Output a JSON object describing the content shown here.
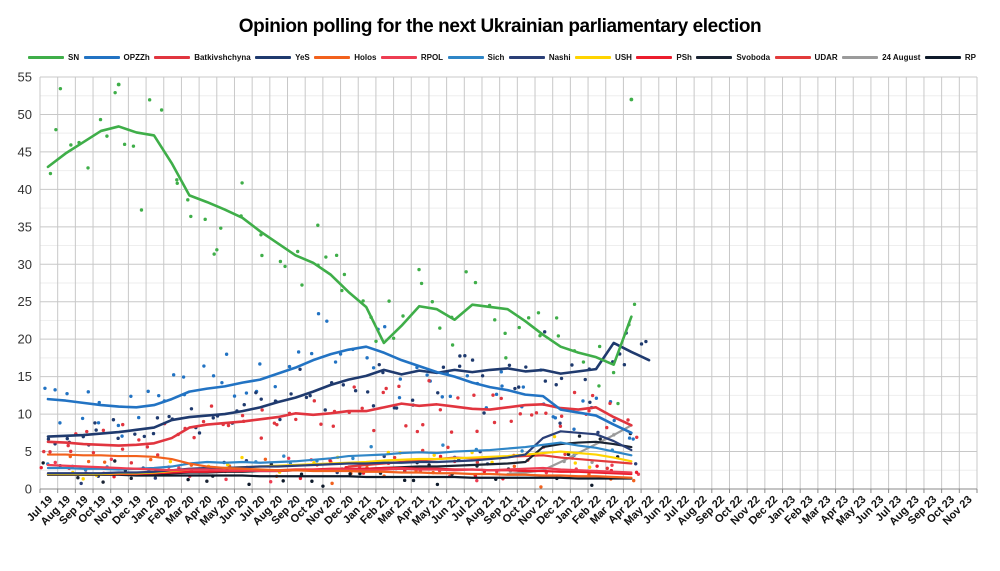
{
  "title": "Opinion polling for the next Ukrainian parliamentary election",
  "chart_data": {
    "type": "line",
    "subtype": "trend lines with poll scatter points",
    "title": "Opinion polling for the next Ukrainian parliamentary election",
    "legend_position": "top",
    "grid": true,
    "y_axis": {
      "min": 0,
      "max": 55,
      "tick_step": 5,
      "minor_step": 2.5,
      "ticks": [
        0,
        5,
        10,
        15,
        20,
        25,
        30,
        35,
        40,
        45,
        50,
        55
      ]
    },
    "x_axis": {
      "label_rotation": -45,
      "categories": [
        "Jul 19",
        "Aug 19",
        "Sep 19",
        "Oct 19",
        "Nov 19",
        "Dec 19",
        "Jan 20",
        "Feb 20",
        "Mar 20",
        "Apr 20",
        "May 20",
        "Jun 20",
        "Jul 20",
        "Aug 20",
        "Sep 20",
        "Oct 20",
        "Nov 20",
        "Dec 20",
        "Jan 21",
        "Feb 21",
        "Mar 21",
        "Apr 21",
        "May 21",
        "Jun 21",
        "Jul 21",
        "Aug 21",
        "Sep 21",
        "Oct 21",
        "Nov 21",
        "Dec 21",
        "Jan 22",
        "Feb 22",
        "Mar 22",
        "Apr 22",
        "May 22",
        "Jun 22",
        "Jul 22",
        "Aug 22",
        "Sep 22",
        "Oct 22",
        "Nov 22",
        "Dec 22",
        "Jan 23",
        "Feb 23",
        "Mar 23",
        "Apr 23",
        "May 23",
        "Jun 23",
        "Jul 23",
        "Aug 23",
        "Sep 23",
        "Oct 23",
        "Nov 23"
      ]
    },
    "data_months": [
      "Jul 19",
      "Aug 19",
      "Sep 19",
      "Oct 19",
      "Nov 19",
      "Dec 19",
      "Jan 20",
      "Feb 20",
      "Mar 20",
      "Apr 20",
      "May 20",
      "Jun 20",
      "Jul 20",
      "Aug 20",
      "Sep 20",
      "Oct 20",
      "Nov 20",
      "Dec 20",
      "Jan 21",
      "Feb 21",
      "Mar 21",
      "Apr 21",
      "May 21",
      "Jun 21",
      "Jul 21",
      "Aug 21",
      "Sep 21",
      "Oct 21",
      "Nov 21",
      "Dec 21",
      "Jan 22",
      "Feb 22",
      "Mar 22",
      "Apr 22",
      "May 22"
    ],
    "series": [
      {
        "name": "SN",
        "color": "#3fae49",
        "major": true,
        "values": [
          43.0,
          44.8,
          46.3,
          47.8,
          48.4,
          47.6,
          47.2,
          43.5,
          39.2,
          38.3,
          37.3,
          36.2,
          34.4,
          32.8,
          31.2,
          30.2,
          28.6,
          26.3,
          24.3,
          19.5,
          21.8,
          24.4,
          24.0,
          22.6,
          24.6,
          24.3,
          24.0,
          22.4,
          20.6,
          19.0,
          18.2,
          17.6,
          16.6,
          23.0,
          null
        ]
      },
      {
        "name": "OPZZh",
        "color": "#2273c3",
        "major": true,
        "values": [
          12.0,
          11.8,
          11.5,
          11.2,
          11.0,
          10.9,
          11.2,
          12.0,
          13.0,
          13.4,
          13.7,
          14.2,
          14.6,
          15.4,
          16.2,
          17.2,
          18.0,
          18.6,
          19.0,
          18.2,
          17.2,
          16.4,
          15.6,
          15.0,
          14.2,
          13.6,
          13.2,
          12.6,
          12.4,
          10.6,
          10.2,
          9.8,
          8.6,
          7.5,
          null
        ]
      },
      {
        "name": "Batkivshchyna",
        "color": "#e1353f",
        "major": true,
        "values": [
          6.3,
          6.2,
          6.0,
          5.9,
          5.8,
          5.9,
          6.1,
          6.8,
          8.2,
          8.6,
          8.8,
          9.0,
          9.3,
          9.6,
          10.1,
          9.9,
          10.1,
          10.4,
          10.4,
          10.9,
          11.4,
          11.1,
          11.3,
          11.0,
          10.7,
          10.6,
          10.9,
          11.2,
          11.3,
          10.8,
          10.6,
          10.9,
          9.6,
          8.5,
          null
        ]
      },
      {
        "name": "YeS",
        "color": "#1f3a6e",
        "major": true,
        "values": [
          7.0,
          7.1,
          7.2,
          7.4,
          7.6,
          7.9,
          8.2,
          9.2,
          9.6,
          9.8,
          10.0,
          10.4,
          10.9,
          11.6,
          12.2,
          13.0,
          13.9,
          14.6,
          15.1,
          15.9,
          15.3,
          15.8,
          15.5,
          15.9,
          15.6,
          15.9,
          16.1,
          15.7,
          15.9,
          15.4,
          15.7,
          16.0,
          19.5,
          18.3,
          17.2
        ]
      },
      {
        "name": "Holos",
        "color": "#f2611d",
        "major": false,
        "values": [
          4.6,
          4.6,
          4.5,
          4.5,
          4.4,
          4.4,
          4.3,
          4.0,
          3.4,
          3.0,
          2.8,
          2.7,
          2.6,
          2.5,
          2.5,
          2.4,
          2.4,
          2.4,
          2.3,
          2.3,
          2.2,
          2.2,
          2.1,
          2.1,
          2.0,
          2.0,
          1.9,
          1.9,
          1.8,
          1.8,
          1.7,
          1.7,
          1.6,
          1.5,
          null
        ]
      },
      {
        "name": "RPOL",
        "color": "#ee3d52",
        "major": false,
        "values": [
          3.2,
          3.1,
          3.0,
          2.9,
          2.8,
          2.7,
          2.6,
          2.5,
          2.6,
          2.6,
          2.5,
          2.5,
          2.4,
          2.4,
          2.5,
          2.5,
          2.6,
          2.6,
          2.5,
          2.6,
          2.7,
          2.6,
          2.6,
          2.5,
          2.6,
          2.5,
          2.6,
          2.7,
          2.8,
          2.6,
          2.5,
          2.4,
          2.3,
          2.2,
          null
        ]
      },
      {
        "name": "Sich",
        "color": "#2f86c7",
        "major": false,
        "values": [
          2.8,
          2.8,
          2.7,
          2.7,
          2.6,
          2.7,
          2.8,
          3.0,
          3.4,
          3.6,
          3.5,
          3.6,
          3.5,
          3.6,
          3.7,
          3.9,
          4.1,
          4.4,
          4.5,
          4.6,
          4.8,
          4.9,
          4.8,
          5.0,
          5.1,
          5.2,
          5.4,
          5.6,
          5.9,
          6.2,
          5.8,
          5.5,
          5.0,
          4.5,
          null
        ]
      },
      {
        "name": "Nashi",
        "color": "#2a3f77",
        "major": false,
        "values": [
          2.1,
          2.1,
          2.1,
          2.1,
          2.2,
          2.2,
          2.3,
          2.5,
          2.7,
          2.8,
          2.8,
          2.9,
          3.0,
          3.0,
          3.1,
          3.2,
          3.3,
          3.4,
          3.4,
          3.5,
          3.5,
          3.6,
          3.6,
          3.7,
          3.8,
          4.0,
          4.2,
          4.6,
          6.8,
          7.7,
          7.5,
          7.3,
          6.4,
          5.2,
          null
        ]
      },
      {
        "name": "USH",
        "color": "#ffd400",
        "major": false,
        "values": [
          2.0,
          2.0,
          2.0,
          2.0,
          2.1,
          2.1,
          2.2,
          2.4,
          2.6,
          2.7,
          2.8,
          2.9,
          3.0,
          3.1,
          3.2,
          3.3,
          3.4,
          3.5,
          3.6,
          3.8,
          3.9,
          4.0,
          4.0,
          4.1,
          4.2,
          4.3,
          4.4,
          4.6,
          4.8,
          5.0,
          4.8,
          4.6,
          4.2,
          3.7,
          null
        ]
      },
      {
        "name": "PSh",
        "color": "#ec1c2d",
        "major": false,
        "values": [
          2.0,
          2.0,
          2.0,
          2.0,
          2.0,
          2.0,
          2.1,
          2.2,
          2.3,
          2.3,
          2.4,
          2.4,
          2.5,
          2.5,
          2.6,
          2.6,
          2.7,
          2.7,
          2.7,
          2.8,
          2.8,
          2.7,
          2.7,
          2.6,
          2.6,
          2.5,
          2.5,
          2.4,
          2.4,
          2.3,
          2.3,
          2.2,
          2.1,
          2.0,
          null
        ]
      },
      {
        "name": "Svoboda",
        "color": "#1a2433",
        "major": false,
        "values": [
          2.0,
          2.0,
          2.0,
          2.0,
          2.0,
          2.0,
          2.0,
          2.1,
          2.2,
          2.2,
          2.3,
          2.3,
          2.4,
          2.4,
          2.5,
          2.5,
          2.6,
          2.6,
          2.7,
          2.8,
          2.9,
          3.0,
          3.0,
          3.1,
          3.2,
          3.3,
          3.4,
          3.6,
          5.6,
          6.0,
          6.2,
          6.3,
          6.0,
          5.6,
          null
        ]
      },
      {
        "name": "UDAR",
        "color": "#e23b3b",
        "major": false,
        "values": [
          null,
          null,
          null,
          null,
          null,
          null,
          null,
          null,
          null,
          null,
          null,
          null,
          null,
          null,
          null,
          null,
          null,
          3.0,
          3.2,
          3.4,
          3.6,
          3.8,
          4.0,
          4.2,
          4.1,
          4.2,
          4.3,
          4.4,
          4.5,
          4.2,
          4.0,
          3.8,
          3.6,
          3.4,
          null
        ]
      },
      {
        "name": "24 August",
        "color": "#9b9b9b",
        "major": false,
        "values": [
          null,
          null,
          null,
          null,
          null,
          null,
          null,
          null,
          null,
          null,
          null,
          null,
          null,
          null,
          null,
          null,
          null,
          null,
          null,
          null,
          null,
          null,
          null,
          null,
          null,
          null,
          2.0,
          2.2,
          2.5,
          3.6,
          4.8,
          6.0,
          7.2,
          8.5,
          null
        ]
      },
      {
        "name": "RP",
        "color": "#0e1a2a",
        "major": false,
        "values": [
          1.9,
          1.9,
          1.9,
          1.9,
          1.9,
          1.8,
          1.8,
          1.8,
          1.8,
          1.8,
          1.8,
          1.8,
          1.7,
          1.7,
          1.7,
          1.7,
          1.7,
          1.7,
          1.6,
          1.6,
          1.6,
          1.6,
          1.6,
          1.6,
          1.5,
          1.5,
          1.5,
          1.5,
          1.5,
          1.5,
          1.4,
          1.4,
          1.4,
          1.4,
          null
        ]
      }
    ],
    "outlier_points": [
      {
        "series": "SN",
        "x": "Nov 19",
        "y": 54
      },
      {
        "series": "SN",
        "x": "Apr 22",
        "y": 52
      }
    ]
  }
}
